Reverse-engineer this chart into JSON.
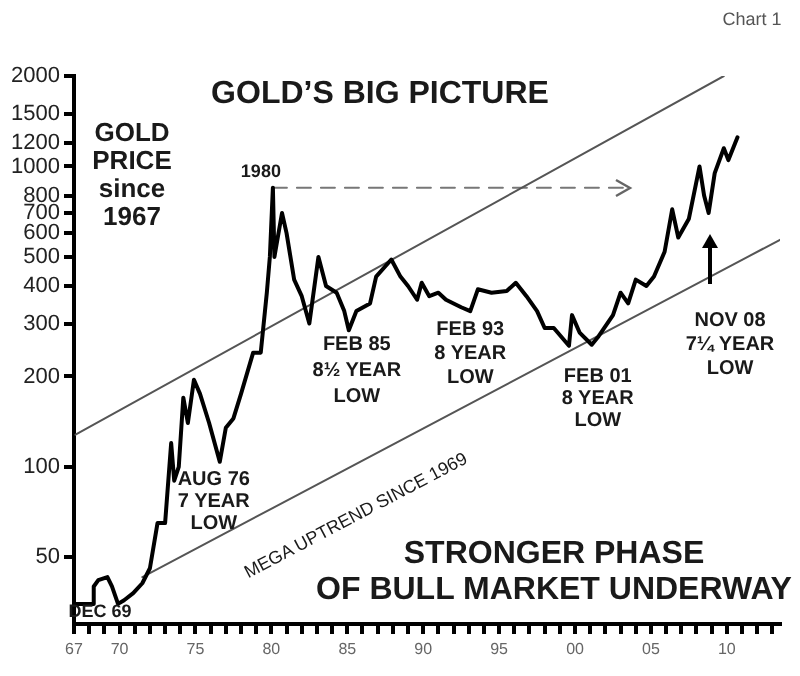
{
  "chart_data": {
    "type": "line",
    "title": "GOLD’S BIG PICTURE",
    "log": "y",
    "grid": false,
    "legend": false,
    "marker": "none",
    "xlim": [
      1967,
      2013.5
    ],
    "ylim": [
      30,
      2000
    ],
    "yticks": [
      50,
      100,
      200,
      300,
      400,
      500,
      600,
      700,
      800,
      1000,
      1200,
      1500,
      2000
    ],
    "xticks": [
      {
        "value": 1967,
        "label": "67"
      },
      {
        "value": 1968,
        "label": null
      },
      {
        "value": 1969,
        "label": null
      },
      {
        "value": 1970,
        "label": "70"
      },
      {
        "value": 1971,
        "label": null
      },
      {
        "value": 1972,
        "label": null
      },
      {
        "value": 1973,
        "label": null
      },
      {
        "value": 1974,
        "label": null
      },
      {
        "value": 1975,
        "label": "75"
      },
      {
        "value": 1976,
        "label": null
      },
      {
        "value": 1977,
        "label": null
      },
      {
        "value": 1978,
        "label": null
      },
      {
        "value": 1979,
        "label": null
      },
      {
        "value": 1980,
        "label": "80"
      },
      {
        "value": 1981,
        "label": null
      },
      {
        "value": 1982,
        "label": null
      },
      {
        "value": 1983,
        "label": null
      },
      {
        "value": 1984,
        "label": null
      },
      {
        "value": 1985,
        "label": "85"
      },
      {
        "value": 1986,
        "label": null
      },
      {
        "value": 1987,
        "label": null
      },
      {
        "value": 1988,
        "label": null
      },
      {
        "value": 1989,
        "label": null
      },
      {
        "value": 1990,
        "label": "90"
      },
      {
        "value": 1991,
        "label": null
      },
      {
        "value": 1992,
        "label": null
      },
      {
        "value": 1993,
        "label": null
      },
      {
        "value": 1994,
        "label": null
      },
      {
        "value": 1995,
        "label": "95"
      },
      {
        "value": 1996,
        "label": null
      },
      {
        "value": 1997,
        "label": null
      },
      {
        "value": 1998,
        "label": null
      },
      {
        "value": 1999,
        "label": null
      },
      {
        "value": 2000,
        "label": "00"
      },
      {
        "value": 2001,
        "label": null
      },
      {
        "value": 2002,
        "label": null
      },
      {
        "value": 2003,
        "label": null
      },
      {
        "value": 2004,
        "label": null
      },
      {
        "value": 2005,
        "label": "05"
      },
      {
        "value": 2006,
        "label": null
      },
      {
        "value": 2007,
        "label": null
      },
      {
        "value": 2008,
        "label": null
      },
      {
        "value": 2009,
        "label": null
      },
      {
        "value": 2010,
        "label": "10"
      },
      {
        "value": 2011,
        "label": null
      },
      {
        "value": 2012,
        "label": null
      },
      {
        "value": 2013,
        "label": null
      }
    ],
    "series": [
      {
        "color": "#000000",
        "x": [
          1967.0,
          1968.2,
          1968.3,
          1968.6,
          1969.2,
          1969.5,
          1969.9,
          1970.3,
          1970.9,
          1971.5,
          1972.0,
          1972.5,
          1973.0,
          1973.4,
          1973.6,
          1973.9,
          1974.2,
          1974.5,
          1974.9,
          1975.3,
          1975.9,
          1976.6,
          1977.0,
          1977.5,
          1978.0,
          1978.8,
          1979.3,
          1979.7,
          1979.9,
          1980.1,
          1980.2,
          1980.7,
          1981.0,
          1981.5,
          1982.0,
          1982.5,
          1983.1,
          1983.6,
          1984.3,
          1984.8,
          1985.1,
          1985.6,
          1986.5,
          1986.9,
          1987.9,
          1988.5,
          1989.0,
          1989.6,
          1989.9,
          1990.4,
          1991.0,
          1991.5,
          1992.5,
          1993.1,
          1993.6,
          1994.5,
          1995.5,
          1996.1,
          1996.8,
          1997.5,
          1998.0,
          1998.6,
          1999.6,
          1999.8,
          2000.3,
          2001.1,
          2001.5,
          2002.5,
          2003.0,
          2003.5,
          2004.0,
          2004.7,
          2005.2,
          2005.9,
          2006.4,
          2006.8,
          2007.5,
          2008.2,
          2008.5,
          2008.8,
          2009.2,
          2009.8,
          2010.1,
          2010.7
        ],
        "values": [
          35,
          35,
          40,
          42,
          43,
          40,
          35,
          36,
          38,
          41,
          46,
          65,
          65,
          120,
          90,
          100,
          170,
          140,
          195,
          175,
          140,
          104,
          135,
          145,
          175,
          240,
          240,
          380,
          500,
          850,
          500,
          700,
          600,
          420,
          370,
          300,
          500,
          400,
          380,
          330,
          285,
          330,
          350,
          430,
          490,
          430,
          400,
          360,
          410,
          370,
          380,
          360,
          340,
          330,
          390,
          380,
          385,
          410,
          370,
          330,
          290,
          290,
          253,
          320,
          280,
          255,
          270,
          320,
          380,
          350,
          420,
          400,
          430,
          520,
          720,
          580,
          670,
          1000,
          800,
          700,
          950,
          1150,
          1050,
          1250
        ]
      },
      {
        "color": "#555555",
        "x": [
          1967.1,
          2009.8
        ],
        "values": [
          128,
          2000
        ]
      },
      {
        "color": "#555555",
        "x": [
          1971.5,
          2013.5
        ],
        "values": [
          43,
          570
        ]
      },
      {
        "color": "#777777",
        "line_style": "dashed",
        "x": [
          1980.1,
          2003.5
        ],
        "values": [
          850,
          850
        ]
      }
    ],
    "annotations": [
      "Chart 1",
      "GOLD\nPRICE\nsince\n1967",
      {
        "text": "1980",
        "x": 1980.1,
        "y": 850
      },
      {
        "text": "DEC 69",
        "x": 1969.9,
        "y": 35
      },
      {
        "text": "AUG 76\n7 YEAR\nLOW",
        "x": 1976.6,
        "y": 104
      },
      {
        "text": "FEB 85\n8½ YEAR\nLOW",
        "x": 1985.1,
        "y": 285
      },
      {
        "text": "FEB 93\n8 YEAR\nLOW",
        "x": 1993.1,
        "y": 330
      },
      {
        "text": "FEB 01\n8 YEAR\nLOW",
        "x": 2001.1,
        "y": 255
      },
      "NOV 08\n7¼ YEAR\nLOW",
      "MEGA UPTREND SINCE 1969",
      "STRONGER PHASE\nOF BULL MARKET UNDERWAY"
    ]
  }
}
